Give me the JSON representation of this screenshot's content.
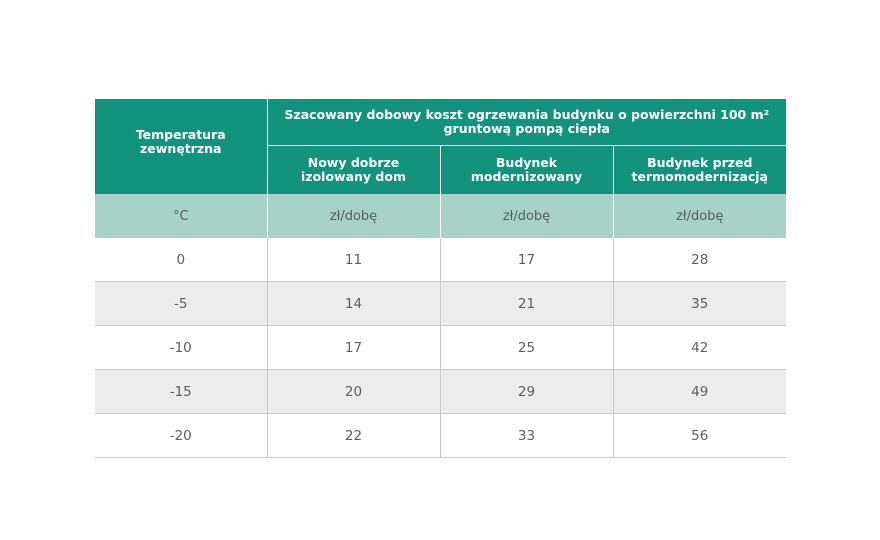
{
  "table": {
    "header": {
      "temperature_label": "Temperatura zewnętrzna",
      "group_label": "Szacowany dobowy koszt ogrzewania budynku o powierzchni 100 m² gruntową pompą ciepła",
      "columns": [
        "Nowy dobrze izolowany dom",
        "Budynek modernizowany",
        "Budynek przed termomodernizacją"
      ]
    },
    "units": [
      "°C",
      "zł/dobę",
      "zł/dobę",
      "zł/dobę"
    ],
    "rows": [
      [
        "0",
        "11",
        "17",
        "28"
      ],
      [
        "-5",
        "14",
        "21",
        "35"
      ],
      [
        "-10",
        "17",
        "25",
        "42"
      ],
      [
        "-15",
        "20",
        "29",
        "49"
      ],
      [
        "-20",
        "22",
        "33",
        "56"
      ]
    ]
  },
  "colors": {
    "header_green": "#11937e",
    "unit_row_green": "#a6d3c5",
    "stripe_gray": "#ececec"
  }
}
